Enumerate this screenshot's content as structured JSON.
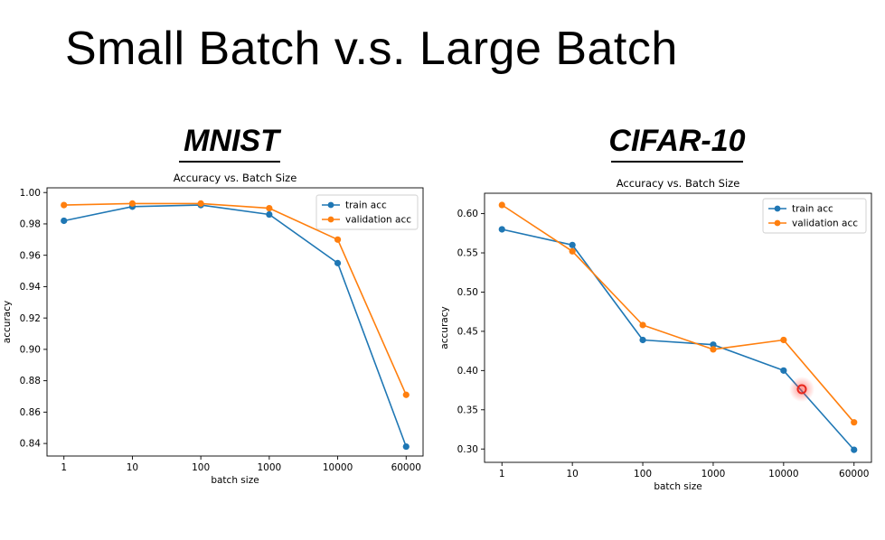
{
  "slide": {
    "title": "Small Batch v.s. Large Batch"
  },
  "panels": {
    "left": {
      "heading": "MNIST"
    },
    "right": {
      "heading": "CIFAR-10"
    }
  },
  "colors": {
    "train": "#1f77b4",
    "validation": "#ff7f0e",
    "cursor": "#e8261c"
  },
  "chart_data": [
    {
      "type": "line",
      "title": "Accuracy vs. Batch Size",
      "xlabel": "batch size",
      "ylabel": "accuracy",
      "categories": [
        "1",
        "10",
        "100",
        "1000",
        "10000",
        "60000"
      ],
      "y_ticks": [
        "0.84",
        "0.86",
        "0.88",
        "0.90",
        "0.92",
        "0.94",
        "0.96",
        "0.98",
        "1.00"
      ],
      "ylim": [
        0.832,
        1.003
      ],
      "grid": false,
      "legend_position": "top-right",
      "series": [
        {
          "name": "train acc",
          "color": "#1f77b4",
          "values": [
            0.982,
            0.991,
            0.992,
            0.986,
            0.955,
            0.838
          ]
        },
        {
          "name": "validation acc",
          "color": "#ff7f0e",
          "values": [
            0.992,
            0.993,
            0.993,
            0.99,
            0.97,
            0.871
          ]
        }
      ]
    },
    {
      "type": "line",
      "title": "Accuracy vs. Batch Size",
      "xlabel": "batch size",
      "ylabel": "accuracy",
      "categories": [
        "1",
        "10",
        "100",
        "1000",
        "10000",
        "60000"
      ],
      "y_ticks": [
        "0.30",
        "0.35",
        "0.40",
        "0.45",
        "0.50",
        "0.55",
        "0.60"
      ],
      "ylim": [
        0.283,
        0.626
      ],
      "grid": false,
      "legend_position": "top-right",
      "series": [
        {
          "name": "train acc",
          "color": "#1f77b4",
          "values": [
            0.58,
            0.56,
            0.439,
            0.433,
            0.4,
            0.299
          ]
        },
        {
          "name": "validation acc",
          "color": "#ff7f0e",
          "values": [
            0.611,
            0.552,
            0.458,
            0.427,
            0.439,
            0.334
          ]
        }
      ]
    }
  ]
}
